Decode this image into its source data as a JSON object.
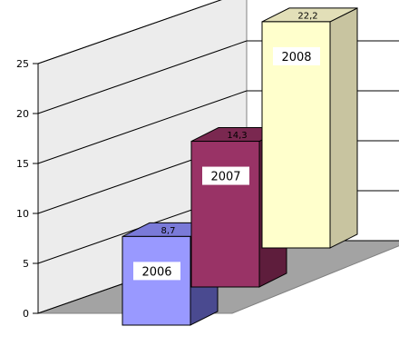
{
  "chart_data": {
    "type": "bar",
    "title": "",
    "xlabel": "",
    "ylabel": "",
    "categories": [
      "2006",
      "2007",
      "2008"
    ],
    "values": [
      8.7,
      14.3,
      22.2
    ],
    "value_labels": [
      "8,7",
      "14,3",
      "22,2"
    ],
    "yticks": [
      "0",
      "5",
      "10",
      "15",
      "20",
      "25"
    ],
    "ylim": [
      0,
      25
    ],
    "grid": true,
    "legend": "none",
    "three_d": true
  },
  "colors": {
    "bars": [
      {
        "front": "#9999ff",
        "side": "#4a4a90",
        "top": "#7a7ad8"
      },
      {
        "front": "#993366",
        "side": "#5e1d3c",
        "top": "#7a2850"
      },
      {
        "front": "#ffffcc",
        "side": "#c8c4a0",
        "top": "#e2dfb8"
      }
    ],
    "back_wall": "#ffffff",
    "side_wall": "#ececec",
    "floor": "#a3a3a3",
    "gridline": "#000000"
  }
}
